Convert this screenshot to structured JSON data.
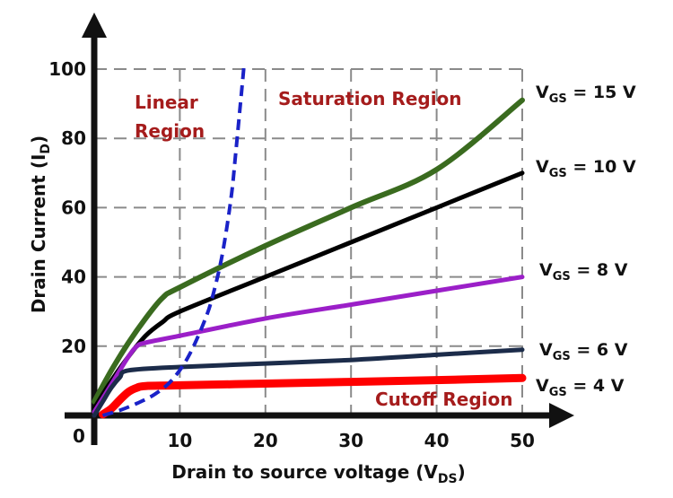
{
  "chart_data": {
    "type": "line",
    "xlabel": "Drain to source voltage (VDS)",
    "xlabel_parts": {
      "main": "Drain to source voltage (V",
      "sub": "DS",
      "end": ")"
    },
    "ylabel": "Drain Current (ID)",
    "ylabel_parts": {
      "main": "Drain Current (I",
      "sub": "D",
      "end": ")"
    },
    "xlim": [
      0,
      50
    ],
    "ylim": [
      0,
      100
    ],
    "x_ticks": [
      "10",
      "20",
      "30",
      "40",
      "50"
    ],
    "y_ticks": [
      "20",
      "40",
      "60",
      "80",
      "100"
    ],
    "origin_label": "0",
    "grid": true,
    "regions": [
      {
        "name": "linear",
        "lines": [
          "Linear",
          "Region"
        ],
        "color": "#a51c1c"
      },
      {
        "name": "saturation",
        "lines": [
          "Saturation Region"
        ],
        "color": "#a51c1c"
      },
      {
        "name": "cutoff",
        "lines": [
          "Cutoff Region"
        ],
        "color": "#a51c1c"
      }
    ],
    "series": [
      {
        "name": "VGS = 15 V",
        "label_parts": {
          "main": "V",
          "sub": "GS",
          "end": " = 15 V"
        },
        "color": "#3a6b1f",
        "x": [
          0,
          2,
          4,
          6,
          8,
          10,
          20,
          30,
          40,
          50
        ],
        "y": [
          4,
          13,
          21,
          28,
          34,
          37,
          49,
          60,
          71,
          91
        ]
      },
      {
        "name": "VGS = 10 V",
        "label_parts": {
          "main": "V",
          "sub": "GS",
          "end": " = 10 V"
        },
        "color": "#000000",
        "x": [
          0,
          2,
          4,
          6,
          8,
          10,
          20,
          30,
          40,
          50
        ],
        "y": [
          2,
          10,
          17,
          23,
          27,
          30,
          40,
          50,
          60,
          70
        ]
      },
      {
        "name": "VGS = 8 V",
        "label_parts": {
          "main": "V",
          "sub": "GS",
          "end": " = 8 V"
        },
        "color": "#9b1fc8",
        "x": [
          0,
          2,
          4,
          5,
          6,
          10,
          20,
          30,
          40,
          50
        ],
        "y": [
          1,
          9,
          17,
          20,
          21,
          23,
          28,
          32,
          36,
          40
        ]
      },
      {
        "name": "VGS = 6 V",
        "label_parts": {
          "main": "V",
          "sub": "GS",
          "end": " = 6 V"
        },
        "color": "#1c2c4a",
        "x": [
          0,
          1,
          2,
          3,
          4,
          10,
          20,
          30,
          40,
          50
        ],
        "y": [
          0,
          4,
          8,
          11,
          13,
          14,
          15,
          16,
          17.5,
          19
        ]
      },
      {
        "name": "VGS = 4 V",
        "label_parts": {
          "main": "V",
          "sub": "GS",
          "end": " = 4 V"
        },
        "color": "#ff0000",
        "x": [
          1,
          2,
          3,
          4,
          5,
          6,
          10,
          20,
          30,
          40,
          50
        ],
        "y": [
          0.3,
          2,
          4.5,
          6.8,
          8,
          8.5,
          8.7,
          9.2,
          9.7,
          10.2,
          10.8
        ]
      }
    ],
    "boundary": {
      "name": "saturation boundary",
      "color": "#1a22c8",
      "style": "dashed",
      "x": [
        1,
        3,
        5,
        7,
        9,
        11,
        13,
        14,
        15,
        16,
        16.5,
        17,
        17.5
      ],
      "y": [
        0,
        1.5,
        3.5,
        6,
        10,
        17,
        28,
        36,
        47,
        63,
        75,
        88,
        101
      ]
    }
  }
}
